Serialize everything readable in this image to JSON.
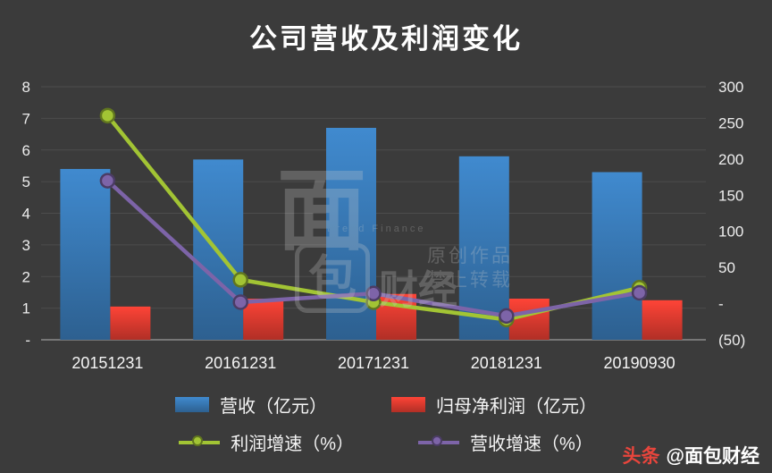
{
  "colors": {
    "background": "#3b3b3b",
    "grid": "#4d4d4d",
    "axis_line": "#9b9b9b",
    "axis_text": "#ededed",
    "title_text": "#ffffff",
    "revenue_bar": "#3878b4",
    "profit_bar": "#dd3b30",
    "profit_growth_line": "#a2c434",
    "revenue_growth_line": "#7d64a8",
    "toutiao_red": "#e8453c"
  },
  "chart_data": {
    "type": "bar",
    "combo": "bar+line",
    "title": "公司营收及利润变化",
    "categories": [
      "20151231",
      "20161231",
      "20171231",
      "20181231",
      "20190930"
    ],
    "series": [
      {
        "name": "营收（亿元）",
        "type": "bar",
        "axis": "left",
        "color": "#3878b4",
        "values": [
          5.4,
          5.7,
          6.7,
          5.8,
          5.3
        ]
      },
      {
        "name": "归母净利润（亿元）",
        "type": "bar",
        "axis": "left",
        "color": "#dd3b30",
        "values": [
          1.05,
          1.3,
          1.45,
          1.3,
          1.25
        ]
      },
      {
        "name": "利润增速（%）",
        "type": "line",
        "axis": "right",
        "color": "#a2c434",
        "values": [
          260,
          33,
          2,
          -22,
          22
        ]
      },
      {
        "name": "营收增速（%）",
        "type": "line",
        "axis": "right",
        "color": "#7d64a8",
        "values": [
          170,
          2,
          14,
          -17,
          15
        ]
      }
    ],
    "left_axis": {
      "min": 0,
      "max": 8,
      "ticks": [
        "8",
        "7",
        "6",
        "5",
        "4",
        "3",
        "2",
        "1",
        "-"
      ]
    },
    "right_axis": {
      "min": -50,
      "max": 300,
      "ticks": [
        "300",
        "250",
        "200",
        "150",
        "100",
        "50",
        "-",
        "(50)"
      ]
    },
    "grid": true,
    "legend_position": "bottom"
  },
  "watermark": {
    "mian": "面",
    "bao": "包",
    "caijing": "财经",
    "bread": "Bread Finance",
    "notice1": "原创作品",
    "notice2": "禁止转载"
  },
  "footer": {
    "brand_logo": "头条",
    "brand_handle": "@面包财经"
  }
}
